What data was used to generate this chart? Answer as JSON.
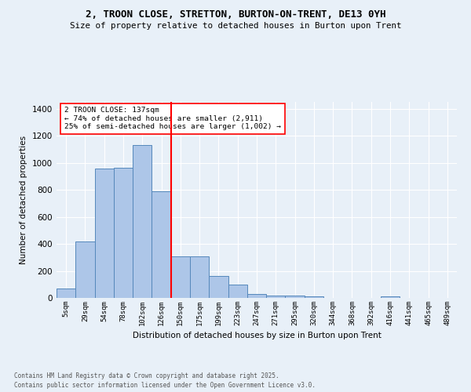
{
  "title_line1": "2, TROON CLOSE, STRETTON, BURTON-ON-TRENT, DE13 0YH",
  "title_line2": "Size of property relative to detached houses in Burton upon Trent",
  "xlabel": "Distribution of detached houses by size in Burton upon Trent",
  "ylabel": "Number of detached properties",
  "footer_line1": "Contains HM Land Registry data © Crown copyright and database right 2025.",
  "footer_line2": "Contains public sector information licensed under the Open Government Licence v3.0.",
  "bin_labels": [
    "5sqm",
    "29sqm",
    "54sqm",
    "78sqm",
    "102sqm",
    "126sqm",
    "150sqm",
    "175sqm",
    "199sqm",
    "223sqm",
    "247sqm",
    "271sqm",
    "295sqm",
    "320sqm",
    "344sqm",
    "368sqm",
    "392sqm",
    "416sqm",
    "441sqm",
    "465sqm",
    "489sqm"
  ],
  "bar_heights": [
    70,
    415,
    955,
    960,
    1130,
    790,
    305,
    305,
    165,
    100,
    30,
    20,
    15,
    12,
    0,
    0,
    0,
    10,
    0,
    0,
    0
  ],
  "bar_color": "#adc6e8",
  "bar_edge_color": "#5588bb",
  "vline_x": 5.5,
  "vline_color": "red",
  "annotation_text": "2 TROON CLOSE: 137sqm\n← 74% of detached houses are smaller (2,911)\n25% of semi-detached houses are larger (1,002) →",
  "annotation_box_color": "white",
  "annotation_box_edge": "red",
  "ylim": [
    0,
    1450
  ],
  "yticks": [
    0,
    200,
    400,
    600,
    800,
    1000,
    1200,
    1400
  ],
  "background_color": "#e8f0f8",
  "plot_bg_color": "#e8f0f8",
  "grid_color": "white"
}
